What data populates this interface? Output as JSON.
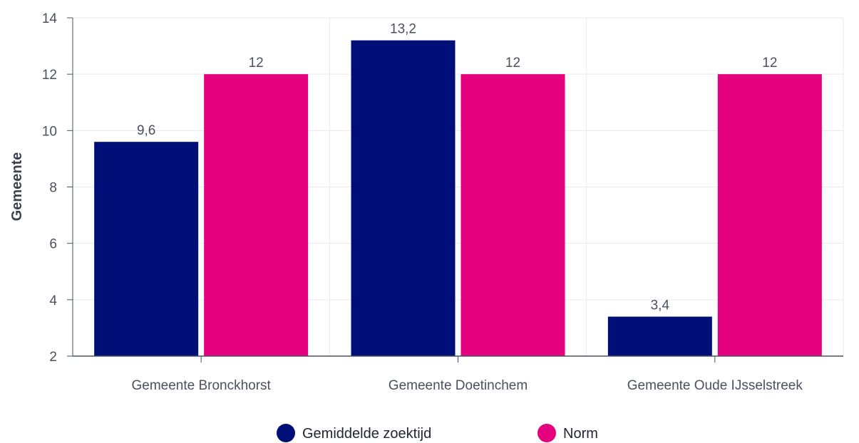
{
  "chart_data": {
    "type": "bar",
    "title": "",
    "xlabel": "",
    "ylabel": "Gemeente",
    "ylim": [
      2,
      14
    ],
    "yticks": [
      2,
      4,
      6,
      8,
      10,
      12,
      14
    ],
    "grid": true,
    "legend_position": "bottom",
    "categories": [
      "Gemeente Bronckhorst",
      "Gemeente Doetinchem",
      "Gemeente Oude IJsselstreek"
    ],
    "series": [
      {
        "name": "Gemiddelde zoektijd",
        "color": "#000f78",
        "values": [
          9.6,
          13.2,
          3.4
        ],
        "labels": [
          "9,6",
          "13,2",
          "3,4"
        ]
      },
      {
        "name": "Norm",
        "color": "#e5007d",
        "values": [
          12,
          12,
          12
        ],
        "labels": [
          "12",
          "12",
          "12"
        ]
      }
    ]
  }
}
